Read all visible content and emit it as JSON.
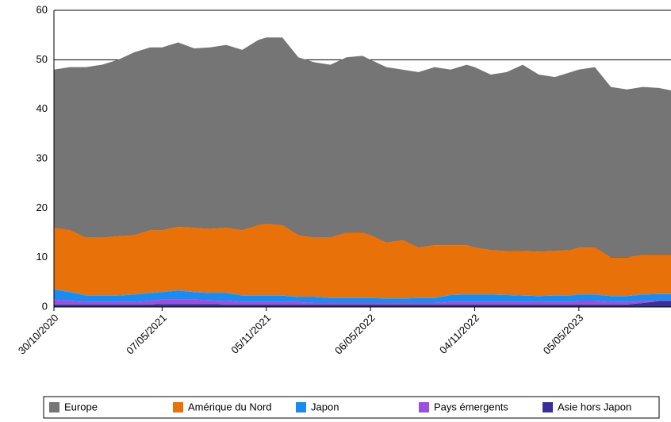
{
  "chart_data": {
    "type": "stacked-area",
    "x": [
      "30/10/2020",
      "27/11/2020",
      "25/12/2020",
      "22/01/2021",
      "19/02/2021",
      "19/03/2021",
      "16/04/2021",
      "07/05/2021",
      "04/06/2021",
      "02/07/2021",
      "30/07/2021",
      "27/08/2021",
      "24/09/2021",
      "22/10/2021",
      "05/11/2021",
      "03/12/2021",
      "31/12/2021",
      "28/01/2022",
      "25/02/2022",
      "25/03/2022",
      "22/04/2022",
      "06/05/2022",
      "03/06/2022",
      "01/07/2022",
      "29/07/2022",
      "26/08/2022",
      "23/09/2022",
      "21/10/2022",
      "04/11/2022",
      "02/12/2022",
      "30/12/2022",
      "27/01/2023",
      "24/02/2023",
      "24/03/2023",
      "21/04/2023",
      "05/05/2023",
      "02/06/2023",
      "30/06/2023",
      "28/07/2023",
      "25/08/2023",
      "22/09/2023",
      "13/10/2023"
    ],
    "xticks": [
      "30/10/2020",
      "07/05/2021",
      "05/11/2021",
      "06/05/2022",
      "04/11/2022",
      "05/05/2023"
    ],
    "series": [
      {
        "name": "Europe",
        "color": "#757575",
        "values": [
          32,
          33,
          34.5,
          35,
          35.7,
          37,
          37,
          37,
          37.3,
          36.3,
          36.7,
          37,
          36.5,
          37.5,
          37.7,
          38,
          36,
          35.5,
          35,
          35.5,
          35.8,
          35.5,
          35.5,
          34.5,
          35.5,
          36,
          35.5,
          36.5,
          36.5,
          35.5,
          36.2,
          37.7,
          35.8,
          35.2,
          36,
          36,
          36.5,
          34.5,
          34,
          34,
          33.8,
          33.3
        ]
      },
      {
        "name": "Amérique du Nord",
        "color": "#e8710a",
        "values": [
          12.5,
          12.5,
          11.7,
          11.7,
          12,
          12,
          12.7,
          12.5,
          12.9,
          13,
          13,
          13.2,
          13.2,
          14.2,
          14.5,
          14.2,
          12.5,
          12,
          12.2,
          13.2,
          13.2,
          12.7,
          11.3,
          11.8,
          10.2,
          10.7,
          10.1,
          10,
          9.5,
          9,
          8.9,
          9,
          9,
          9,
          9.2,
          9.5,
          9.5,
          7.8,
          7.8,
          8,
          7.9,
          7.9
        ]
      },
      {
        "name": "Japon",
        "color": "#1a8cf0",
        "values": [
          2,
          1.8,
          1.3,
          1.3,
          1.3,
          1.5,
          1.6,
          1.5,
          1.8,
          1.5,
          1.5,
          1.6,
          1.3,
          1.3,
          1.3,
          1.3,
          1,
          1.2,
          1,
          1,
          1,
          1,
          0.9,
          0.9,
          1,
          1,
          1.4,
          1.5,
          1.5,
          1.5,
          1.4,
          1.3,
          1.2,
          1.3,
          1.3,
          1.3,
          1.3,
          1.2,
          1.2,
          1.3,
          1.3,
          1.3
        ]
      },
      {
        "name": "Pays émergents",
        "color": "#9b4fe0",
        "values": [
          1,
          0.7,
          0.5,
          0.5,
          0.5,
          0.5,
          0.7,
          0.9,
          0.9,
          0.9,
          0.7,
          0.7,
          0.5,
          0.5,
          0.5,
          0.5,
          0.5,
          0.3,
          0.3,
          0.3,
          0.3,
          0.3,
          0.3,
          0.3,
          0.3,
          0.3,
          0.5,
          0.5,
          0.5,
          0.5,
          0.5,
          0.5,
          0.5,
          0.5,
          0.5,
          0.7,
          0.7,
          0.5,
          0.5,
          0.4,
          0.1,
          0.1
        ]
      },
      {
        "name": "Asie hors Japon",
        "color": "#3a2f9a",
        "values": [
          0.5,
          0.5,
          0.5,
          0.5,
          0.5,
          0.5,
          0.5,
          0.6,
          0.6,
          0.6,
          0.6,
          0.5,
          0.5,
          0.5,
          0.5,
          0.5,
          0.5,
          0.5,
          0.5,
          0.5,
          0.5,
          0.5,
          0.5,
          0.5,
          0.5,
          0.5,
          0.5,
          0.5,
          0.5,
          0.5,
          0.5,
          0.5,
          0.5,
          0.5,
          0.5,
          0.5,
          0.5,
          0.5,
          0.5,
          0.8,
          1.2,
          1.2
        ]
      }
    ],
    "ylim": [
      0,
      60
    ],
    "yticks": [
      0,
      10,
      20,
      30,
      40,
      50,
      60
    ],
    "grid": true
  }
}
